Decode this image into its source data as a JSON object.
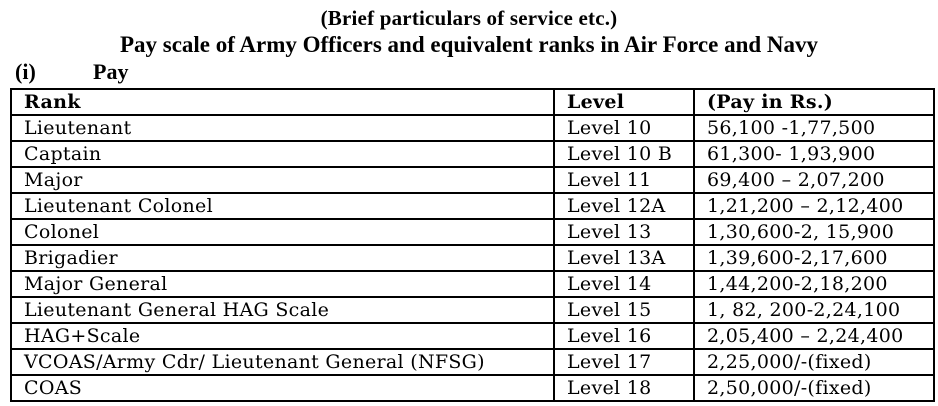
{
  "document": {
    "title": "(Brief particulars of service etc.)",
    "subtitle": "Pay scale of Army Officers and equivalent ranks in Air Force and Navy",
    "item": {
      "marker": "(i)",
      "label": "Pay"
    }
  },
  "table": {
    "columns": [
      "Rank",
      "Level",
      "(Pay in Rs.)"
    ],
    "rows": [
      {
        "rank": "Lieutenant",
        "level": "Level 10",
        "pay": "56,100 -1,77,500"
      },
      {
        "rank": "Captain",
        "level": "Level 10 B",
        "pay": "61,300- 1,93,900"
      },
      {
        "rank": "Major",
        "level": "Level 11",
        "pay": "69,400 – 2,07,200"
      },
      {
        "rank": "Lieutenant Colonel",
        "level": "Level 12A",
        "pay": "1,21,200 – 2,12,400"
      },
      {
        "rank": "Colonel",
        "level": "Level 13",
        "pay": "1,30,600-2, 15,900"
      },
      {
        "rank": "Brigadier",
        "level": "Level 13A",
        "pay": "1,39,600-2,17,600"
      },
      {
        "rank": "Major General",
        "level": "Level 14",
        "pay": "1,44,200-2,18,200"
      },
      {
        "rank": "Lieutenant General HAG Scale",
        "level": "Level 15",
        "pay": "1, 82, 200-2,24,100"
      },
      {
        "rank": "HAG+Scale",
        "level": "Level 16",
        "pay": "2,05,400 – 2,24,400"
      },
      {
        "rank": "VCOAS/Army Cdr/ Lieutenant General (NFSG)",
        "level": "Level 17",
        "pay": "2,25,000/-(fixed)"
      },
      {
        "rank": "COAS",
        "level": "Level 18",
        "pay": "2,50,000/-(fixed)"
      }
    ]
  },
  "colors": {
    "text": "#000000",
    "background": "#ffffff",
    "border": "#000000"
  }
}
